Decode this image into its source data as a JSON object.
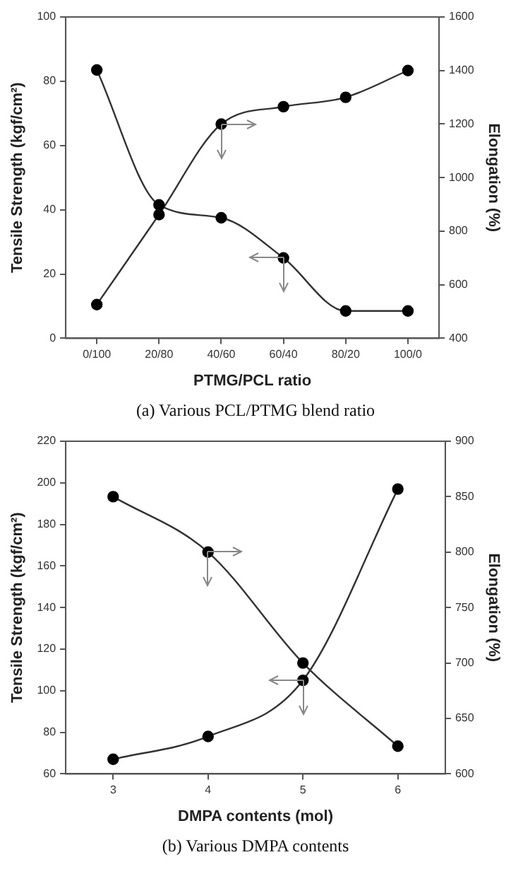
{
  "chart_data": [
    {
      "type": "line",
      "xlabel": "PTMG/PCL ratio",
      "ylabel": "Tensile Strength (kgf/cm²)",
      "y2label": "Elongation (%)",
      "categories": [
        "0/100",
        "20/80",
        "40/60",
        "60/40",
        "80/20",
        "100/0"
      ],
      "series": [
        {
          "color": "#333333",
          "values": [
            83.5,
            41.5,
            37.5,
            25,
            8.5,
            8.5
          ]
        },
        {
          "color": "#333333",
          "axis": "y2",
          "values": [
            526,
            862,
            1200,
            1265,
            1300,
            1400
          ]
        }
      ],
      "ylim": [
        0,
        100
      ],
      "yticks": [
        0,
        20,
        40,
        60,
        80,
        100
      ],
      "y2lim": [
        400,
        1600
      ],
      "y2ticks": [
        400,
        600,
        800,
        1000,
        1200,
        1400,
        1600
      ],
      "marker": "circle",
      "line_style": "solid",
      "grid": false,
      "legend": false,
      "annotations": [
        "(a)  Various  PCL/PTMG  blend  ratio"
      ]
    },
    {
      "type": "line",
      "xlabel": "DMPA contents (mol)",
      "ylabel": "Tensile Strength (kgf/cm²)",
      "y2label": "Elongation (%)",
      "x": [
        3,
        4,
        5,
        6
      ],
      "series": [
        {
          "color": "#333333",
          "values": [
            67,
            78,
            105,
            197
          ]
        },
        {
          "color": "#333333",
          "axis": "y2",
          "values": [
            850,
            800,
            700,
            625
          ]
        }
      ],
      "xlim": [
        2.5,
        6.5
      ],
      "xticks": [
        3,
        4,
        5,
        6
      ],
      "ylim": [
        60,
        220
      ],
      "yticks": [
        60,
        80,
        100,
        120,
        140,
        160,
        180,
        200,
        220
      ],
      "y2lim": [
        600,
        900
      ],
      "y2ticks": [
        600,
        650,
        700,
        750,
        800,
        850,
        900
      ],
      "marker": "circle",
      "line_style": "solid",
      "grid": false,
      "legend": false,
      "annotations": [
        "(b)  Various  DMPA  contents"
      ]
    }
  ]
}
